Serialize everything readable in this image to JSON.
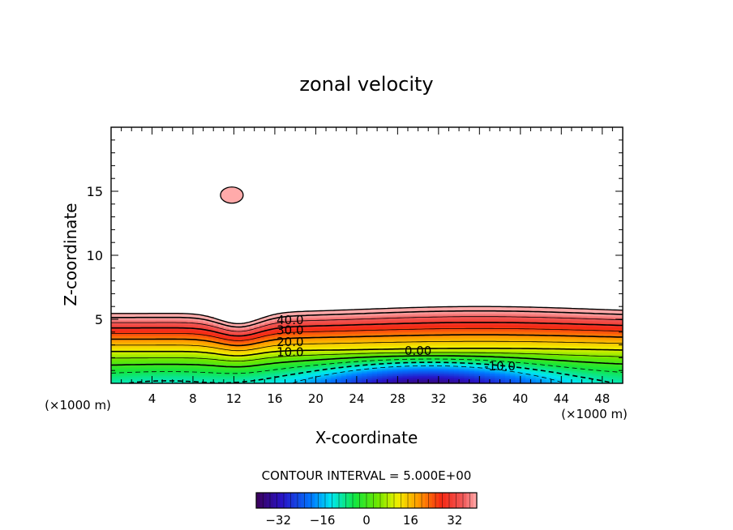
{
  "chart_data": {
    "type": "heatmap",
    "title": "zonal velocity",
    "xlabel": "X-coordinate",
    "ylabel": "Z-coordinate",
    "x_unit_left": "(×1000 m)",
    "x_unit_right": "(×1000 m)",
    "xlim": [
      0,
      50
    ],
    "ylim": [
      0,
      20
    ],
    "x_ticks": [
      4,
      8,
      12,
      16,
      20,
      24,
      28,
      32,
      36,
      40,
      44,
      48
    ],
    "y_ticks": [
      5,
      10,
      15
    ],
    "x_tick_labels": [
      "4",
      "8",
      "12",
      "16",
      "20",
      "24",
      "28",
      "32",
      "36",
      "40",
      "44",
      "48"
    ],
    "y_tick_labels": [
      "5",
      "10",
      "15"
    ],
    "contour_interval_text": "CONTOUR INTERVAL = 5.000E+00",
    "contour_labels": [
      {
        "text": "40.0",
        "x": 17.5,
        "z": 5.0
      },
      {
        "text": "30.0",
        "x": 17.5,
        "z": 4.2
      },
      {
        "text": "20.0",
        "x": 17.5,
        "z": 3.3
      },
      {
        "text": "10.0",
        "x": 17.5,
        "z": 2.5
      },
      {
        "text": "0.00",
        "x": 30,
        "z": 2.6
      },
      {
        "text": "-10.0",
        "x": 38,
        "z": 1.4
      }
    ],
    "colorbar": {
      "min": -40,
      "max": 40,
      "tick_values": [
        -32,
        -16,
        0,
        16,
        32
      ],
      "tick_labels": [
        "−32",
        "−16",
        "0",
        "16",
        "32"
      ]
    },
    "bubble": {
      "x": 11.8,
      "z": 14.7,
      "value": 40
    }
  }
}
